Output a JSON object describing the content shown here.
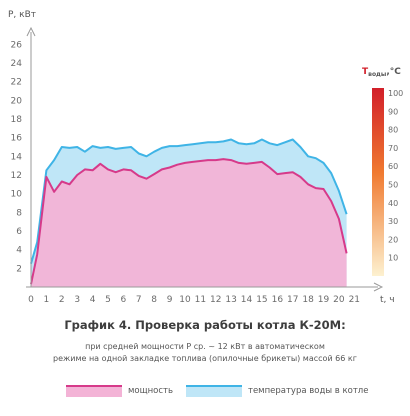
{
  "chart_data": {
    "type": "area",
    "ylabel": "P, кВт",
    "xlabel": "t, ч",
    "x_ticks": [
      0,
      1,
      2,
      3,
      4,
      5,
      6,
      7,
      8,
      9,
      10,
      11,
      12,
      13,
      14,
      15,
      16,
      17,
      18,
      19,
      20,
      21
    ],
    "y_ticks": [
      2,
      4,
      6,
      8,
      10,
      12,
      14,
      16,
      18,
      20,
      22,
      24,
      26
    ],
    "xlim": [
      0,
      21.5
    ],
    "ylim": [
      0,
      27
    ],
    "grid": false,
    "legend_position": "bottom",
    "colorbar": {
      "label": "T",
      "label_sub": "воды",
      "label_unit": ",°С",
      "ticks": [
        10,
        20,
        30,
        40,
        50,
        60,
        70,
        80,
        90,
        100
      ],
      "range": [
        0,
        100
      ],
      "colors": [
        "#d21f2a",
        "#f07a30",
        "#fde9c0"
      ]
    },
    "series": [
      {
        "name": "температура воды в котле",
        "color": "#3fb4e6",
        "fill": "#bfe6f7",
        "x": [
          0,
          0.4,
          1,
          1.5,
          2,
          2.5,
          3,
          3.5,
          4,
          4.5,
          5,
          5.5,
          6,
          6.5,
          7,
          7.5,
          8,
          8.5,
          9,
          9.5,
          10,
          10.5,
          11,
          11.5,
          12,
          12.5,
          13,
          13.5,
          14,
          14.5,
          15,
          15.5,
          16,
          16.5,
          17,
          17.5,
          18,
          18.5,
          19,
          19.5,
          20,
          20.5
        ],
        "values": [
          2.5,
          4.8,
          12.5,
          13.6,
          15.0,
          14.9,
          15.0,
          14.5,
          15.1,
          14.9,
          15.0,
          14.8,
          14.9,
          15.0,
          14.3,
          14.0,
          14.5,
          14.9,
          15.1,
          15.1,
          15.2,
          15.3,
          15.4,
          15.5,
          15.5,
          15.6,
          15.8,
          15.4,
          15.3,
          15.4,
          15.8,
          15.4,
          15.2,
          15.5,
          15.8,
          15.0,
          14.0,
          13.8,
          13.3,
          12.2,
          10.3,
          7.8
        ]
      },
      {
        "name": "мощность",
        "color": "#d63a8a",
        "fill": "#f3b3d6",
        "x": [
          0,
          0.4,
          1,
          1.5,
          2,
          2.5,
          3,
          3.5,
          4,
          4.5,
          5,
          5.5,
          6,
          6.5,
          7,
          7.5,
          8,
          8.5,
          9,
          9.5,
          10,
          10.5,
          11,
          11.5,
          12,
          12.5,
          13,
          13.5,
          14,
          14.5,
          15,
          15.5,
          16,
          16.5,
          17,
          17.5,
          18,
          18.5,
          19,
          19.5,
          20,
          20.5
        ],
        "values": [
          0.3,
          3.5,
          11.8,
          10.2,
          11.3,
          11.0,
          12.0,
          12.6,
          12.5,
          13.2,
          12.6,
          12.3,
          12.6,
          12.5,
          11.9,
          11.6,
          12.1,
          12.6,
          12.8,
          13.1,
          13.3,
          13.4,
          13.5,
          13.6,
          13.6,
          13.7,
          13.6,
          13.3,
          13.2,
          13.3,
          13.4,
          12.8,
          12.1,
          12.2,
          12.3,
          11.8,
          11.0,
          10.6,
          10.5,
          9.2,
          7.3,
          3.6
        ]
      }
    ]
  },
  "caption": {
    "title": "График 4. Проверка работы котла К-20М:",
    "line1": "при средней мощности P ср. ~ 12 кВт в автоматическом",
    "line2": "режиме на одной закладке топлива (опилочные брикеты) массой 66 кг"
  },
  "legend": [
    {
      "label": "мощность",
      "color": "#d63a8a",
      "fill": "#f3b3d6"
    },
    {
      "label": "температура воды в котле",
      "color": "#3fb4e6",
      "fill": "#bfe6f7"
    }
  ]
}
